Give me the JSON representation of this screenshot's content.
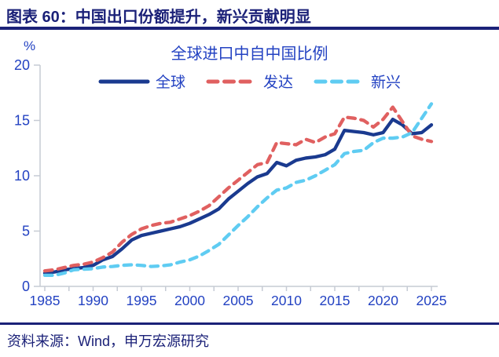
{
  "header": {
    "title": "图表 60：中国出口份额提升，新兴贡献明显"
  },
  "chart": {
    "title": "全球进口中自中国比例",
    "unit_label": "%"
  },
  "colors": {
    "header_navy": "#1B2178",
    "label_blue": "#2342C2",
    "axis_gray": "#C6CBD4",
    "series_global": "#1A3A8F",
    "series_developed": "#E06060",
    "series_emerging": "#5FCCF2"
  },
  "chart_data": {
    "type": "line",
    "title": "全球进口中自中国比例",
    "xlabel": "",
    "ylabel": "%",
    "ylim": [
      0,
      20
    ],
    "yticks": [
      0,
      5,
      10,
      15,
      20
    ],
    "xticks": [
      1985,
      1990,
      1995,
      2000,
      2005,
      2010,
      2015,
      2020,
      2025
    ],
    "grid": false,
    "legend_position": "top",
    "x": [
      1985,
      1986,
      1987,
      1988,
      1989,
      1990,
      1991,
      1992,
      1993,
      1994,
      1995,
      1996,
      1997,
      1998,
      1999,
      2000,
      2001,
      2002,
      2003,
      2004,
      2005,
      2006,
      2007,
      2008,
      2009,
      2010,
      2011,
      2012,
      2013,
      2014,
      2015,
      2016,
      2017,
      2018,
      2019,
      2020,
      2021,
      2022,
      2023,
      2024,
      2025
    ],
    "series": [
      {
        "name": "全球",
        "color": "#1A3A8F",
        "dash": "solid",
        "values": [
          1.2,
          1.3,
          1.5,
          1.6,
          1.7,
          1.9,
          2.4,
          2.7,
          3.4,
          4.2,
          4.6,
          4.8,
          5.0,
          5.2,
          5.4,
          5.7,
          6.1,
          6.5,
          7.0,
          7.9,
          8.6,
          9.3,
          9.9,
          10.2,
          11.2,
          10.9,
          11.4,
          11.6,
          11.7,
          11.9,
          12.4,
          14.1,
          14.0,
          13.9,
          13.7,
          13.9,
          15.1,
          14.6,
          13.8,
          13.9,
          14.6
        ]
      },
      {
        "name": "发达",
        "color": "#E06060",
        "dash": "dashed",
        "values": [
          1.4,
          1.5,
          1.7,
          1.9,
          2.0,
          2.2,
          2.6,
          3.1,
          4.0,
          4.7,
          5.2,
          5.5,
          5.7,
          5.8,
          6.1,
          6.4,
          6.8,
          7.3,
          8.1,
          8.9,
          9.6,
          10.3,
          11.0,
          11.2,
          13.0,
          12.9,
          12.8,
          13.3,
          13.0,
          13.5,
          13.8,
          15.3,
          15.2,
          15.0,
          14.4,
          15.1,
          16.2,
          14.9,
          13.6,
          13.3,
          13.1
        ]
      },
      {
        "name": "新兴",
        "color": "#5FCCF2",
        "dash": "dashed",
        "values": [
          1.0,
          1.0,
          1.2,
          1.5,
          1.55,
          1.6,
          1.75,
          1.8,
          1.9,
          1.95,
          1.9,
          1.8,
          1.85,
          1.95,
          2.2,
          2.4,
          2.75,
          3.25,
          3.8,
          4.65,
          5.5,
          6.3,
          7.2,
          8.0,
          8.7,
          8.9,
          9.4,
          9.6,
          10.0,
          10.5,
          11.0,
          12.0,
          12.2,
          12.3,
          13.0,
          13.4,
          13.4,
          13.5,
          13.9,
          15.2,
          16.5
        ]
      }
    ]
  },
  "footer": {
    "source": "资料来源：Wind，申万宏源研究"
  }
}
